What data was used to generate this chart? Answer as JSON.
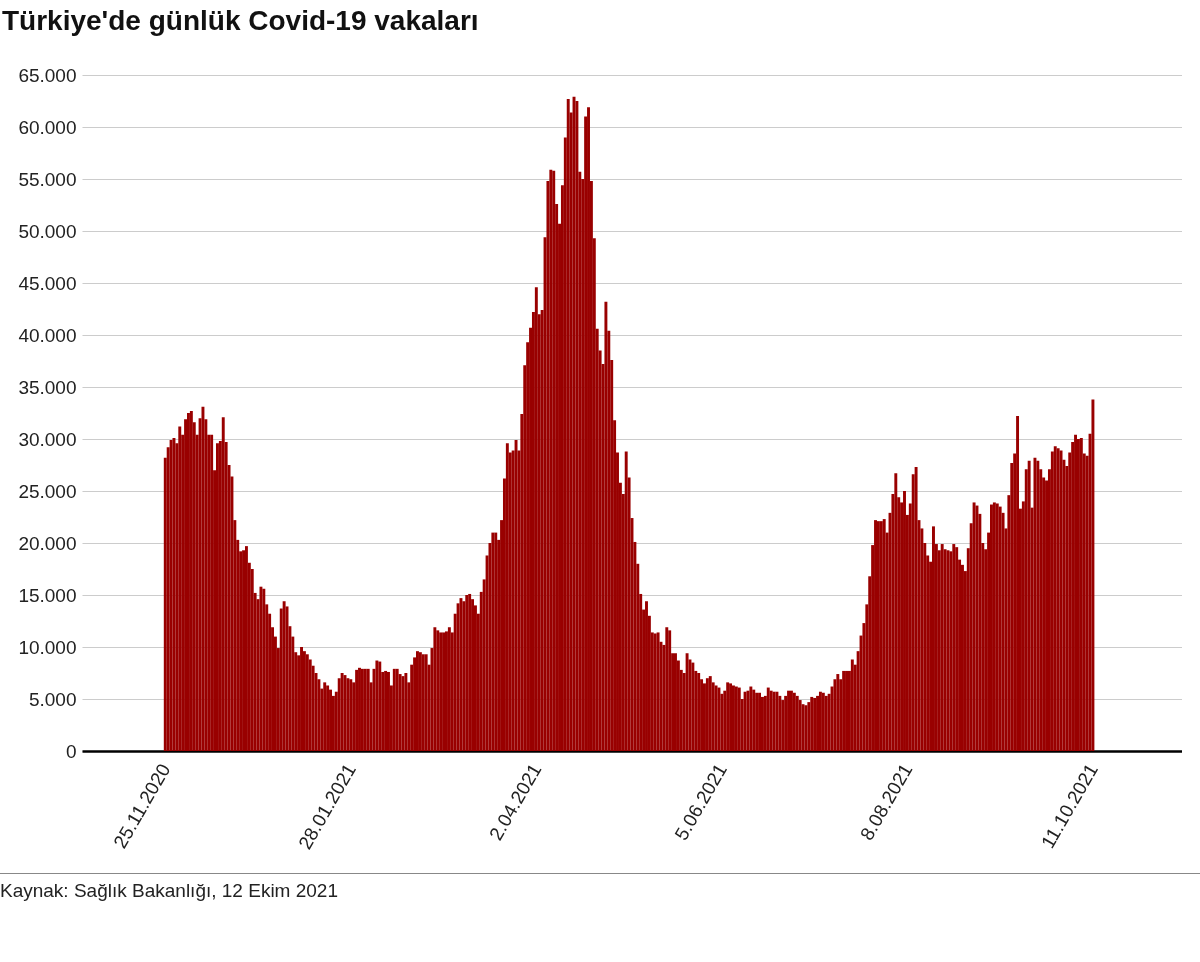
{
  "chart_data": {
    "type": "bar",
    "title": "Türkiye'de günlük Covid-19 vakaları",
    "color": "#990000",
    "x": [
      "2020-11-25",
      "2020-11-26",
      "2020-11-27",
      "2020-11-28",
      "2020-11-29",
      "2020-11-30",
      "2020-12-01",
      "2020-12-02",
      "2020-12-03",
      "2020-12-04",
      "2020-12-05",
      "2020-12-06",
      "2020-12-07",
      "2020-12-08",
      "2020-12-09",
      "2020-12-10",
      "2020-12-11",
      "2020-12-12",
      "2020-12-13",
      "2020-12-14",
      "2020-12-15",
      "2020-12-16",
      "2020-12-17",
      "2020-12-18",
      "2020-12-19",
      "2020-12-20",
      "2020-12-21",
      "2020-12-22",
      "2020-12-23",
      "2020-12-24",
      "2020-12-25",
      "2020-12-26",
      "2020-12-27",
      "2020-12-28",
      "2020-12-29",
      "2020-12-30",
      "2020-12-31",
      "2021-01-01",
      "2021-01-02",
      "2021-01-03",
      "2021-01-04",
      "2021-01-05",
      "2021-01-06",
      "2021-01-07",
      "2021-01-08",
      "2021-01-09",
      "2021-01-10",
      "2021-01-11",
      "2021-01-12",
      "2021-01-13",
      "2021-01-14",
      "2021-01-15",
      "2021-01-16",
      "2021-01-17",
      "2021-01-18",
      "2021-01-19",
      "2021-01-20",
      "2021-01-21",
      "2021-01-22",
      "2021-01-23",
      "2021-01-24",
      "2021-01-25",
      "2021-01-26",
      "2021-01-27",
      "2021-01-28",
      "2021-01-29",
      "2021-01-30",
      "2021-01-31",
      "2021-02-01",
      "2021-02-02",
      "2021-02-03",
      "2021-02-04",
      "2021-02-05",
      "2021-02-06",
      "2021-02-07",
      "2021-02-08",
      "2021-02-09",
      "2021-02-10",
      "2021-02-11",
      "2021-02-12",
      "2021-02-13",
      "2021-02-14",
      "2021-02-15",
      "2021-02-16",
      "2021-02-17",
      "2021-02-18",
      "2021-02-19",
      "2021-02-20",
      "2021-02-21",
      "2021-02-22",
      "2021-02-23",
      "2021-02-24",
      "2021-02-25",
      "2021-02-26",
      "2021-02-27",
      "2021-02-28",
      "2021-03-01",
      "2021-03-02",
      "2021-03-03",
      "2021-03-04",
      "2021-03-05",
      "2021-03-06",
      "2021-03-07",
      "2021-03-08",
      "2021-03-09",
      "2021-03-10",
      "2021-03-11",
      "2021-03-12",
      "2021-03-13",
      "2021-03-14",
      "2021-03-15",
      "2021-03-16",
      "2021-03-17",
      "2021-03-18",
      "2021-03-19",
      "2021-03-20",
      "2021-03-21",
      "2021-03-22",
      "2021-03-23",
      "2021-03-24",
      "2021-03-25",
      "2021-03-26",
      "2021-03-27",
      "2021-03-28",
      "2021-03-29",
      "2021-03-30",
      "2021-03-31",
      "2021-04-01",
      "2021-04-02",
      "2021-04-03",
      "2021-04-04",
      "2021-04-05",
      "2021-04-06",
      "2021-04-07",
      "2021-04-08",
      "2021-04-09",
      "2021-04-10",
      "2021-04-11",
      "2021-04-12",
      "2021-04-13",
      "2021-04-14",
      "2021-04-15",
      "2021-04-16",
      "2021-04-17",
      "2021-04-18",
      "2021-04-19",
      "2021-04-20",
      "2021-04-21",
      "2021-04-22",
      "2021-04-23",
      "2021-04-24",
      "2021-04-25",
      "2021-04-26",
      "2021-04-27",
      "2021-04-28",
      "2021-04-29",
      "2021-04-30",
      "2021-05-01",
      "2021-05-02",
      "2021-05-03",
      "2021-05-04",
      "2021-05-05",
      "2021-05-06",
      "2021-05-07",
      "2021-05-08",
      "2021-05-09",
      "2021-05-10",
      "2021-05-11",
      "2021-05-12",
      "2021-05-13",
      "2021-05-14",
      "2021-05-15",
      "2021-05-16",
      "2021-05-17",
      "2021-05-18",
      "2021-05-19",
      "2021-05-20",
      "2021-05-21",
      "2021-05-22",
      "2021-05-23",
      "2021-05-24",
      "2021-05-25",
      "2021-05-26",
      "2021-05-27",
      "2021-05-28",
      "2021-05-29",
      "2021-05-30",
      "2021-05-31",
      "2021-06-01",
      "2021-06-02",
      "2021-06-03",
      "2021-06-04",
      "2021-06-05",
      "2021-06-06",
      "2021-06-07",
      "2021-06-08",
      "2021-06-09",
      "2021-06-10",
      "2021-06-11",
      "2021-06-12",
      "2021-06-13",
      "2021-06-14",
      "2021-06-15",
      "2021-06-16",
      "2021-06-17",
      "2021-06-18",
      "2021-06-19",
      "2021-06-20",
      "2021-06-21",
      "2021-06-22",
      "2021-06-23",
      "2021-06-24",
      "2021-06-25",
      "2021-06-26",
      "2021-06-27",
      "2021-06-28",
      "2021-06-29",
      "2021-06-30",
      "2021-07-01",
      "2021-07-02",
      "2021-07-03",
      "2021-07-04",
      "2021-07-05",
      "2021-07-06",
      "2021-07-07",
      "2021-07-08",
      "2021-07-09",
      "2021-07-10",
      "2021-07-11",
      "2021-07-12",
      "2021-07-13",
      "2021-07-14",
      "2021-07-15",
      "2021-07-16",
      "2021-07-17",
      "2021-07-18",
      "2021-07-19",
      "2021-07-20",
      "2021-07-21",
      "2021-07-22",
      "2021-07-23",
      "2021-07-24",
      "2021-07-25",
      "2021-07-26",
      "2021-07-27",
      "2021-07-28",
      "2021-07-29",
      "2021-07-30",
      "2021-07-31",
      "2021-08-01",
      "2021-08-02",
      "2021-08-03",
      "2021-08-04",
      "2021-08-05",
      "2021-08-06",
      "2021-08-07",
      "2021-08-08",
      "2021-08-09",
      "2021-08-10",
      "2021-08-11",
      "2021-08-12",
      "2021-08-13",
      "2021-08-14",
      "2021-08-15",
      "2021-08-16",
      "2021-08-17",
      "2021-08-18",
      "2021-08-19",
      "2021-08-20",
      "2021-08-21",
      "2021-08-22",
      "2021-08-23",
      "2021-08-24",
      "2021-08-25",
      "2021-08-26",
      "2021-08-27",
      "2021-08-28",
      "2021-08-29",
      "2021-08-30",
      "2021-08-31",
      "2021-09-01",
      "2021-09-02",
      "2021-09-03",
      "2021-09-04",
      "2021-09-05",
      "2021-09-06",
      "2021-09-07",
      "2021-09-08",
      "2021-09-09",
      "2021-09-10",
      "2021-09-11",
      "2021-09-12",
      "2021-09-13",
      "2021-09-14",
      "2021-09-15",
      "2021-09-16",
      "2021-09-17",
      "2021-09-18",
      "2021-09-19",
      "2021-09-20",
      "2021-09-21",
      "2021-09-22",
      "2021-09-23",
      "2021-09-24",
      "2021-09-25",
      "2021-09-26",
      "2021-09-27",
      "2021-09-28",
      "2021-09-29",
      "2021-09-30",
      "2021-10-01",
      "2021-10-02",
      "2021-10-03",
      "2021-10-04",
      "2021-10-05",
      "2021-10-06",
      "2021-10-07",
      "2021-10-08",
      "2021-10-09",
      "2021-10-10",
      "2021-10-11"
    ],
    "values": [
      28200,
      29200,
      29900,
      30100,
      29600,
      31200,
      30400,
      31900,
      32500,
      32700,
      31600,
      30400,
      32000,
      33100,
      31900,
      30400,
      30400,
      27000,
      29600,
      29800,
      32100,
      29700,
      27500,
      26400,
      22200,
      20300,
      19200,
      19300,
      19700,
      18100,
      17500,
      15200,
      14600,
      15800,
      15600,
      14100,
      13200,
      11900,
      11000,
      9900,
      13700,
      14400,
      13900,
      12000,
      11000,
      9500,
      9200,
      10000,
      9600,
      9300,
      8800,
      8200,
      7500,
      6900,
      6000,
      6600,
      6300,
      5900,
      5300,
      5700,
      7000,
      7500,
      7300,
      7000,
      6900,
      6600,
      7800,
      8000,
      7900,
      7900,
      7900,
      6600,
      7900,
      8700,
      8600,
      7600,
      7700,
      7600,
      6300,
      7900,
      7900,
      7400,
      7200,
      7500,
      6600,
      8300,
      9000,
      9600,
      9500,
      9300,
      9300,
      8300,
      9900,
      11900,
      11600,
      11400,
      11400,
      11500,
      11900,
      11400,
      13200,
      14200,
      14700,
      14400,
      15000,
      15100,
      14600,
      14000,
      13200,
      15300,
      16500,
      18800,
      20000,
      21000,
      21000,
      20300,
      22200,
      26200,
      29600,
      28700,
      28900,
      29900,
      28900,
      32400,
      37100,
      39300,
      40700,
      42200,
      44600,
      42000,
      42400,
      49400,
      54800,
      55900,
      55800,
      52600,
      50700,
      54400,
      59000,
      62700,
      61400,
      62900,
      62500,
      55700,
      55000,
      61000,
      61900,
      54800,
      49300,
      40600,
      38500,
      37200,
      43200,
      40400,
      37600,
      31800,
      28700,
      25800,
      24700,
      28800,
      26300,
      22400,
      20100,
      18000,
      15100,
      13600,
      14400,
      13000,
      11400,
      11300,
      11400,
      10500,
      10200,
      11900,
      11600,
      9400,
      9400,
      8700,
      7800,
      7500,
      9400,
      8800,
      8500,
      7700,
      7500,
      6900,
      6500,
      7000,
      7200,
      6600,
      6300,
      6100,
      5500,
      5800,
      6600,
      6500,
      6300,
      6200,
      6100,
      5000,
      5700,
      5800,
      6200,
      5900,
      5600,
      5600,
      5200,
      5300,
      6100,
      5800,
      5700,
      5700,
      5300,
      4900,
      5300,
      5800,
      5800,
      5600,
      5300,
      4900,
      4500,
      4400,
      4700,
      5200,
      5100,
      5300,
      5700,
      5600,
      5300,
      5500,
      6200,
      6900,
      7400,
      6900,
      7700,
      7700,
      7700,
      8800,
      8300,
      9600,
      11100,
      12300,
      14100,
      16800,
      19800,
      22200,
      22100,
      22100,
      22300,
      21000,
      22900,
      24700,
      26700,
      24400,
      23900,
      25000,
      22700,
      23800,
      26600,
      27300,
      22200,
      21400,
      20000,
      18800,
      18200,
      21600,
      19900,
      19300,
      19900,
      19400,
      19300,
      19200,
      19900,
      19600,
      18400,
      17900,
      17300,
      19500,
      21900,
      23900,
      23600,
      22800,
      20000,
      19400,
      21000,
      23700,
      23900,
      23800,
      23500,
      22900,
      21400,
      24600,
      27700,
      28600,
      32200,
      23300,
      24000,
      27100,
      27900,
      23400,
      28200,
      27900,
      27100,
      26300,
      26000,
      27100,
      28800,
      29300,
      29100,
      28900,
      28000,
      27400,
      28700,
      29700,
      30400,
      30000,
      30100,
      28600,
      28400,
      30500,
      33800
    ],
    "xlim": [
      "2020-10-29",
      "2021-11-09"
    ],
    "xticks": [
      {
        "value": "2020-11-25",
        "label": "25.11.2020"
      },
      {
        "value": "2021-01-28",
        "label": "28.01.2021"
      },
      {
        "value": "2021-04-02",
        "label": "2.04.2021"
      },
      {
        "value": "2021-06-05",
        "label": "5.06.2021"
      },
      {
        "value": "2021-08-08",
        "label": "8.08.2021"
      },
      {
        "value": "2021-10-11",
        "label": "11.10.2021"
      }
    ],
    "ylim": [
      0,
      65000
    ],
    "yticks": [
      0,
      {
        "value": 5000,
        "label": "5.000"
      },
      {
        "value": 10000,
        "label": "10.000"
      },
      {
        "value": 15000,
        "label": "15.000"
      },
      {
        "value": 20000,
        "label": "20.000"
      },
      {
        "value": 25000,
        "label": "25.000"
      },
      {
        "value": 30000,
        "label": "30.000"
      },
      {
        "value": 35000,
        "label": "35.000"
      },
      {
        "value": 40000,
        "label": "40.000"
      },
      {
        "value": 45000,
        "label": "45.000"
      },
      {
        "value": 50000,
        "label": "50.000"
      },
      {
        "value": 55000,
        "label": "55.000"
      },
      {
        "value": 60000,
        "label": "60.000"
      },
      {
        "value": 65000,
        "label": "65.000"
      }
    ],
    "grid": "y",
    "annotations": [
      "Kaynak: Sağlık Bakanlığı, 12 Ekim 2021"
    ]
  }
}
